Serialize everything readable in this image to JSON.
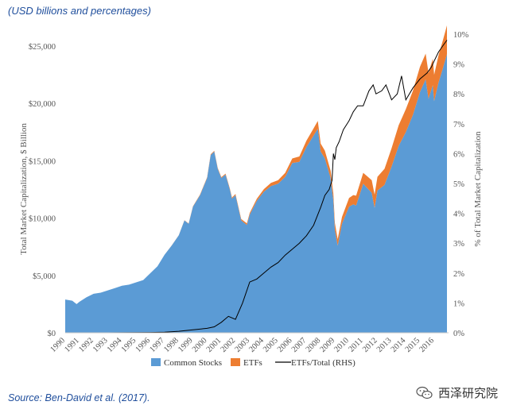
{
  "header_note": "(USD billions and percentages)",
  "source_note": "Source: Ben-David et al. (2017).",
  "watermark": {
    "text": "西泽研究院",
    "icon": "wechat-icon"
  },
  "colors": {
    "common_stocks": "#5b9bd5",
    "etfs": "#ed7d31",
    "ratio_line": "#000000",
    "header_text": "#1f4e9c"
  },
  "chart_data": {
    "type": "area",
    "title": "",
    "ylabel": "Total Market Capitalization, $ Billion",
    "y2label": "% of Total Market Capitalization",
    "ylim": [
      0,
      25000
    ],
    "y2lim": [
      0,
      10
    ],
    "xlim": [
      1990,
      2016.9
    ],
    "y_ticks": [
      0,
      5000,
      10000,
      15000,
      20000,
      25000
    ],
    "y_tick_labels": [
      "$0",
      "$5,000",
      "$10,000",
      "$15,000",
      "$20,000",
      "$25,000"
    ],
    "y2_ticks": [
      0,
      1,
      2,
      3,
      4,
      5,
      6,
      7,
      8,
      9,
      10
    ],
    "y2_tick_labels": [
      "0%",
      "1%",
      "2%",
      "3%",
      "4%",
      "5%",
      "6%",
      "7%",
      "8%",
      "9%",
      "10%"
    ],
    "x_tick_labels": [
      "1990",
      "1991",
      "1992",
      "1993",
      "1994",
      "1995",
      "1996",
      "1997",
      "1998",
      "1999",
      "2000",
      "2001",
      "2002",
      "2003",
      "2004",
      "2005",
      "2006",
      "2007",
      "2008",
      "2009",
      "2010",
      "2011",
      "2012",
      "2013",
      "2014",
      "2015",
      "2016"
    ],
    "legend": [
      {
        "label": "Common Stocks",
        "kind": "swatch",
        "color": "#5b9bd5"
      },
      {
        "label": "ETFs",
        "kind": "swatch",
        "color": "#ed7d31"
      },
      {
        "label": "ETFs/Total (RHS)",
        "kind": "line",
        "color": "#000000"
      }
    ],
    "series": [
      {
        "name": "Common Stocks",
        "axis": "left",
        "x": [
          1990.0,
          1990.5,
          1990.8,
          1991.0,
          1991.5,
          1992.0,
          1992.5,
          1993.0,
          1993.5,
          1994.0,
          1994.5,
          1995.0,
          1995.5,
          1996.0,
          1996.5,
          1997.0,
          1997.5,
          1998.0,
          1998.4,
          1998.7,
          1999.0,
          1999.5,
          2000.0,
          2000.25,
          2000.5,
          2000.75,
          2001.0,
          2001.3,
          2001.6,
          2001.75,
          2002.0,
          2002.4,
          2002.8,
          2003.0,
          2003.5,
          2004.0,
          2004.5,
          2005.0,
          2005.5,
          2006.0,
          2006.5,
          2007.0,
          2007.5,
          2007.8,
          2008.0,
          2008.3,
          2008.7,
          2008.9,
          2009.0,
          2009.2,
          2009.5,
          2010.0,
          2010.3,
          2010.5,
          2011.0,
          2011.3,
          2011.6,
          2011.8,
          2012.0,
          2012.5,
          2013.0,
          2013.5,
          2014.0,
          2014.5,
          2015.0,
          2015.4,
          2015.6,
          2015.9,
          2016.0,
          2016.3,
          2016.6,
          2016.9
        ],
        "values": [
          2900,
          2800,
          2500,
          2700,
          3100,
          3400,
          3500,
          3700,
          3900,
          4100,
          4200,
          4400,
          4600,
          5200,
          5800,
          6800,
          7600,
          8500,
          9800,
          9500,
          11000,
          12000,
          13500,
          15500,
          15800,
          14300,
          13500,
          13800,
          12500,
          11700,
          12000,
          9800,
          9400,
          10300,
          11500,
          12300,
          12800,
          13000,
          13600,
          14800,
          14900,
          16200,
          17200,
          17800,
          15800,
          15200,
          13500,
          11500,
          9000,
          7600,
          9500,
          11000,
          11200,
          11100,
          13000,
          12600,
          12200,
          10900,
          12400,
          12900,
          14500,
          16300,
          17500,
          19000,
          21000,
          22100,
          20400,
          21600,
          20200,
          21800,
          23000,
          24300
        ]
      },
      {
        "name": "ETFs",
        "axis": "left",
        "x": [
          1990.0,
          1993.0,
          1996.0,
          1998.0,
          2000.0,
          2001.0,
          2002.0,
          2003.0,
          2004.0,
          2005.0,
          2006.0,
          2007.0,
          2008.0,
          2009.0,
          2009.3,
          2010.0,
          2011.0,
          2012.0,
          2013.0,
          2014.0,
          2015.0,
          2016.0,
          2016.9
        ],
        "values": [
          0,
          0,
          0,
          10,
          60,
          70,
          100,
          150,
          230,
          300,
          400,
          550,
          700,
          600,
          550,
          750,
          950,
          1200,
          1600,
          2000,
          2200,
          2300,
          2500
        ]
      },
      {
        "name": "ETFs/Total (RHS)",
        "axis": "right",
        "x": [
          1990.0,
          1993.0,
          1996.0,
          1997.0,
          1998.0,
          1999.0,
          2000.0,
          2000.5,
          2001.0,
          2001.5,
          2002.0,
          2002.5,
          2003.0,
          2003.5,
          2004.0,
          2004.5,
          2005.0,
          2005.5,
          2006.0,
          2006.5,
          2007.0,
          2007.5,
          2008.0,
          2008.3,
          2008.6,
          2008.8,
          2008.9,
          2009.0,
          2009.1,
          2009.3,
          2009.6,
          2010.0,
          2010.3,
          2010.6,
          2011.0,
          2011.4,
          2011.7,
          2011.9,
          2012.3,
          2012.6,
          2013.0,
          2013.4,
          2013.7,
          2014.0,
          2014.5,
          2015.0,
          2015.5,
          2015.8,
          2016.0,
          2016.3,
          2016.6,
          2016.9
        ],
        "values": [
          0,
          0,
          0.01,
          0.02,
          0.05,
          0.1,
          0.15,
          0.2,
          0.35,
          0.55,
          0.45,
          1.0,
          1.7,
          1.8,
          2.0,
          2.2,
          2.35,
          2.6,
          2.8,
          3.0,
          3.25,
          3.6,
          4.2,
          4.6,
          4.8,
          5.1,
          6.0,
          5.8,
          6.2,
          6.4,
          6.8,
          7.1,
          7.4,
          7.6,
          7.6,
          8.1,
          8.3,
          8.0,
          8.1,
          8.3,
          7.8,
          8.0,
          8.6,
          7.8,
          8.2,
          8.5,
          8.7,
          8.9,
          9.1,
          9.4,
          9.6,
          9.8
        ]
      }
    ]
  }
}
